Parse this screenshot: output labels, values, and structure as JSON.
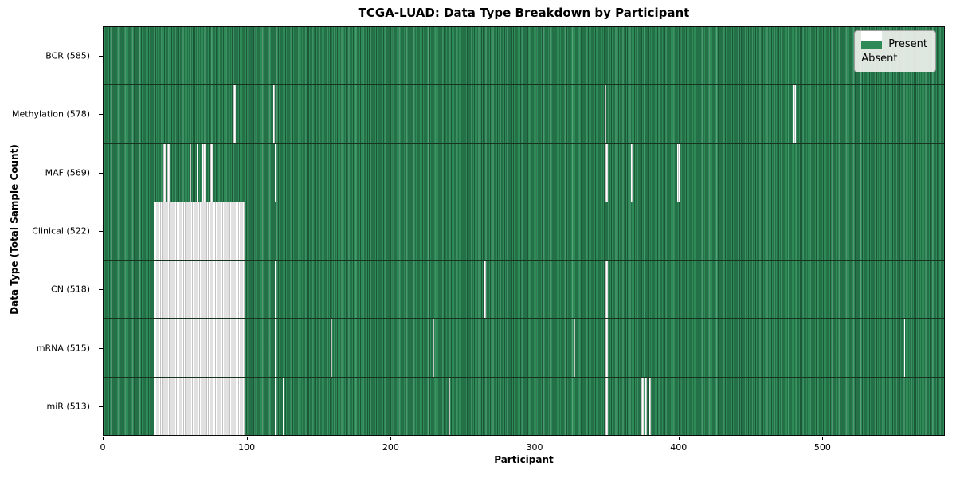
{
  "title": "TCGA-LUAD: Data Type Breakdown by Participant",
  "x_axis_label": "Participant",
  "y_axis_label": "Data Type (Total Sample Count)",
  "legend": {
    "present_label": "Present",
    "absent_label": "Absent"
  },
  "colors": {
    "present": "#2e8b57",
    "present_edge": "#1c5737",
    "absent": "#ffffff",
    "absent_edge": "#c3c3c3",
    "row_divider": "#17341f",
    "legend_bg": "#eef0ec"
  },
  "chart_data": {
    "type": "heatmap",
    "title": "TCGA-LUAD: Data Type Breakdown by Participant",
    "xlabel": "Participant",
    "ylabel": "Data Type (Total Sample Count)",
    "x_range": [
      0,
      585
    ],
    "x_ticks": [
      0,
      100,
      200,
      300,
      400,
      500
    ],
    "grid": false,
    "legend_entries": [
      "Present",
      "Absent"
    ],
    "legend_position": "upper right",
    "value_encoding": {
      "present": "seagreen cell",
      "absent": "white cell"
    },
    "rows": [
      {
        "name": "BCR",
        "label": "BCR (585)",
        "present_count": 585,
        "absent_ranges": []
      },
      {
        "name": "Methylation",
        "label": "Methylation (578)",
        "present_count": 578,
        "absent_ranges": [
          [
            90,
            91
          ],
          [
            118,
            118
          ],
          [
            343,
            343
          ],
          [
            349,
            349
          ],
          [
            480,
            481
          ]
        ]
      },
      {
        "name": "MAF",
        "label": "MAF (569)",
        "present_count": 569,
        "absent_ranges": [
          [
            41,
            42
          ],
          [
            44,
            45
          ],
          [
            60,
            60
          ],
          [
            65,
            65
          ],
          [
            69,
            70
          ],
          [
            74,
            75
          ],
          [
            119,
            119
          ],
          [
            349,
            350
          ],
          [
            367,
            367
          ],
          [
            399,
            400
          ]
        ]
      },
      {
        "name": "Clinical",
        "label": "Clinical (522)",
        "present_count": 522,
        "absent_ranges": [
          [
            35,
            97
          ]
        ]
      },
      {
        "name": "CN",
        "label": "CN (518)",
        "present_count": 518,
        "absent_ranges": [
          [
            35,
            97
          ],
          [
            119,
            119
          ],
          [
            265,
            265
          ],
          [
            349,
            350
          ]
        ]
      },
      {
        "name": "mRNA",
        "label": "mRNA (515)",
        "present_count": 515,
        "absent_ranges": [
          [
            35,
            97
          ],
          [
            119,
            119
          ],
          [
            158,
            158
          ],
          [
            229,
            229
          ],
          [
            327,
            327
          ],
          [
            349,
            350
          ],
          [
            557,
            557
          ]
        ]
      },
      {
        "name": "miR",
        "label": "miR (513)",
        "present_count": 513,
        "absent_ranges": [
          [
            35,
            97
          ],
          [
            119,
            119
          ],
          [
            125,
            125
          ],
          [
            240,
            240
          ],
          [
            349,
            350
          ],
          [
            374,
            375
          ],
          [
            377,
            377
          ],
          [
            380,
            380
          ]
        ]
      }
    ]
  }
}
